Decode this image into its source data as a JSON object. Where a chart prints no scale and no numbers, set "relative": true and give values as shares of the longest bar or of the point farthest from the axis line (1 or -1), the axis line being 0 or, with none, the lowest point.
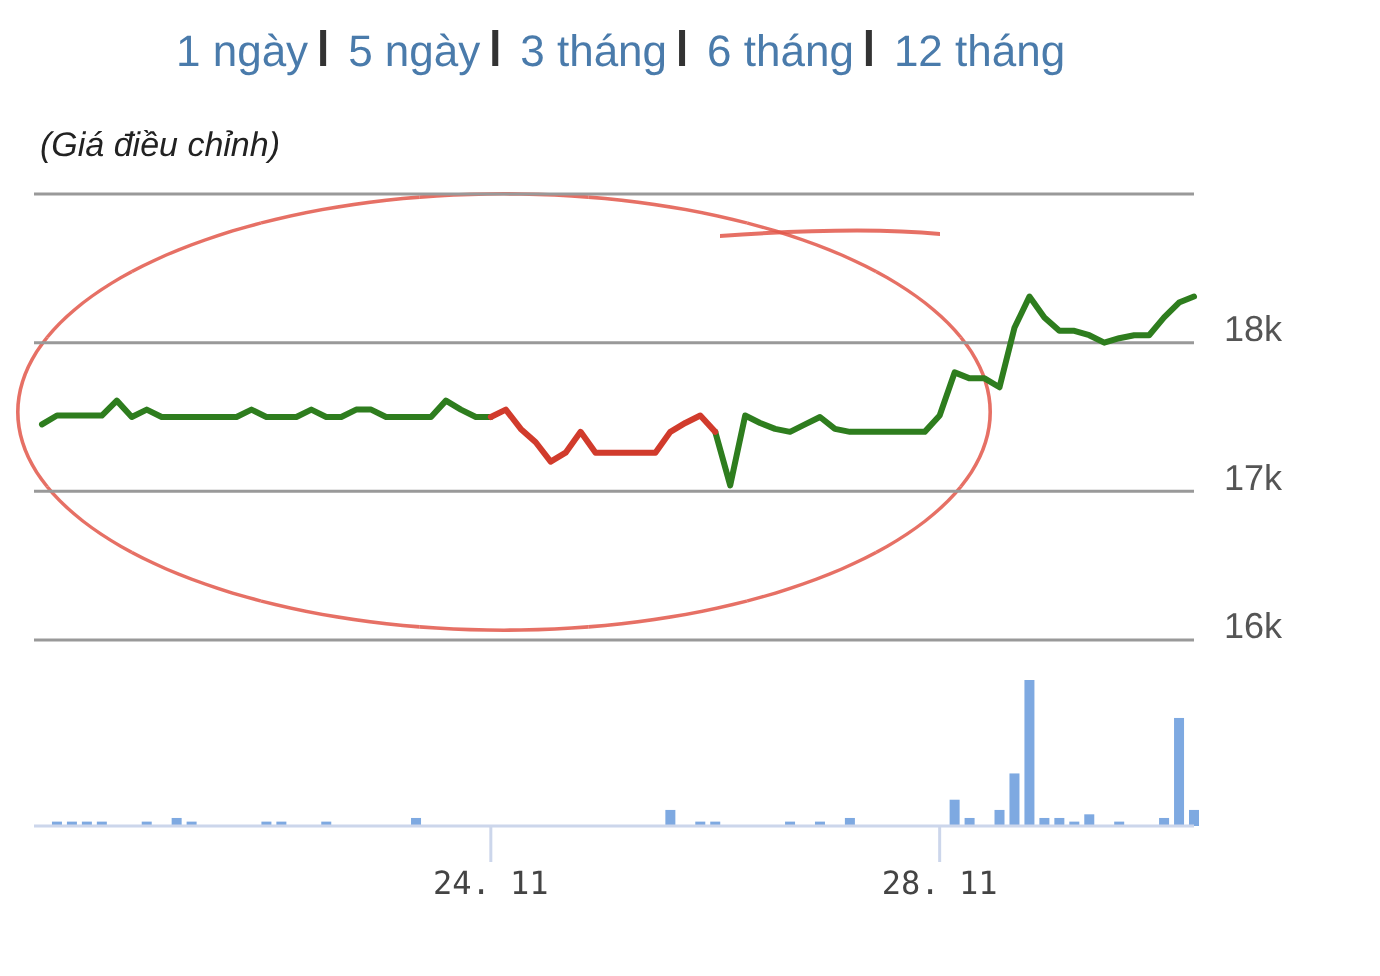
{
  "chart_data": [
    {
      "type": "line",
      "title": "(Giá điều chỉnh)",
      "annotations": [
        "1 ngày",
        "5 ngày",
        "3 tháng",
        "6 tháng",
        "12 tháng"
      ],
      "categories": [
        null,
        null,
        null,
        null,
        null,
        null,
        null,
        null,
        null,
        null,
        null,
        null,
        null,
        null,
        null,
        null,
        null,
        null,
        null,
        null,
        null,
        null,
        null,
        null,
        null,
        null,
        null,
        null,
        null,
        null,
        null,
        null,
        null,
        null,
        null,
        null,
        null,
        null,
        null,
        null,
        null,
        null,
        null,
        null,
        null,
        null,
        null,
        null,
        null,
        null,
        null,
        null,
        null,
        null,
        null,
        null,
        null,
        null,
        null,
        null,
        null,
        null,
        null,
        null,
        null,
        null,
        null,
        null,
        null,
        null,
        null,
        null,
        null,
        null,
        null,
        null,
        null,
        null
      ],
      "series": [
        {
          "color": "#2e7d1e",
          "values": [
            17450,
            17510,
            17510,
            17510,
            17510,
            17610,
            17500,
            17550,
            17500,
            17500,
            17500,
            17500,
            17500,
            17500,
            17550,
            17500,
            17500,
            17500,
            17550,
            17500,
            17500,
            17550,
            17550,
            17500,
            17500,
            17500,
            17500,
            17610,
            17550,
            17500,
            17500,
            null,
            null,
            null,
            null,
            null,
            null,
            null,
            null,
            null,
            null,
            null,
            null,
            null,
            null,
            17400,
            17040,
            17510,
            17460,
            17420,
            17400,
            17450,
            17500,
            17420,
            17400,
            17400,
            17400,
            17400,
            17400,
            17400,
            17510,
            17800,
            17760,
            17760,
            17700,
            18100,
            18310,
            18170,
            18080,
            18080,
            18050,
            18000,
            18030,
            18050,
            18050,
            18170,
            18270,
            18310
          ]
        },
        {
          "color": "#d13b2c",
          "values": [
            null,
            null,
            null,
            null,
            null,
            null,
            null,
            null,
            null,
            null,
            null,
            null,
            null,
            null,
            null,
            null,
            null,
            null,
            null,
            null,
            null,
            null,
            null,
            null,
            null,
            null,
            null,
            null,
            null,
            null,
            17500,
            17550,
            17420,
            17330,
            17200,
            17260,
            17400,
            17260,
            17260,
            17260,
            17260,
            17260,
            17400,
            17460,
            17510,
            17400,
            null,
            null,
            null,
            null,
            null,
            null,
            null,
            null,
            null,
            null,
            null,
            null,
            null,
            null,
            null,
            null,
            null,
            null,
            null,
            null,
            null,
            null,
            null,
            null,
            null,
            null,
            null,
            null,
            null,
            null,
            null,
            null
          ]
        }
      ],
      "ylim": [
        16000,
        19000
      ],
      "yticks": [
        {
          "value": 16000,
          "label": "16k"
        },
        {
          "value": 17000,
          "label": "17k"
        },
        {
          "value": 18000,
          "label": "18k"
        },
        {
          "value": 19000,
          "label": null
        }
      ],
      "grid": "y",
      "tick_labels": "y"
    },
    {
      "type": "bar",
      "relative": true,
      "color": "#7ea9e1",
      "categories": [
        null,
        null,
        null,
        null,
        null,
        null,
        null,
        null,
        null,
        null,
        null,
        null,
        null,
        null,
        null,
        null,
        null,
        null,
        null,
        null,
        null,
        null,
        null,
        null,
        null,
        null,
        null,
        null,
        null,
        null,
        "24. 11",
        null,
        null,
        null,
        null,
        null,
        null,
        null,
        null,
        null,
        null,
        null,
        null,
        null,
        null,
        null,
        null,
        null,
        null,
        null,
        null,
        null,
        null,
        null,
        null,
        null,
        null,
        null,
        null,
        null,
        "28. 11",
        null,
        null,
        null,
        null,
        null,
        null,
        null,
        null,
        null,
        null,
        null,
        null,
        null,
        null,
        null,
        null,
        null
      ],
      "values": [
        null,
        0.03,
        0.03,
        0.03,
        0.03,
        null,
        null,
        0.03,
        null,
        0.055,
        0.03,
        null,
        null,
        null,
        null,
        0.03,
        0.03,
        null,
        null,
        0.03,
        null,
        null,
        null,
        null,
        null,
        0.055,
        null,
        null,
        null,
        null,
        null,
        null,
        null,
        null,
        null,
        null,
        null,
        null,
        null,
        null,
        null,
        null,
        0.11,
        null,
        0.03,
        0.03,
        null,
        null,
        null,
        null,
        0.03,
        null,
        0.03,
        null,
        0.055,
        null,
        null,
        null,
        null,
        null,
        null,
        0.18,
        0.055,
        null,
        0.11,
        0.36,
        1,
        0.055,
        0.055,
        0.03,
        0.08,
        null,
        0.03,
        null,
        null,
        0.055,
        0.74,
        0.11
      ],
      "tick_labels": "x"
    }
  ]
}
